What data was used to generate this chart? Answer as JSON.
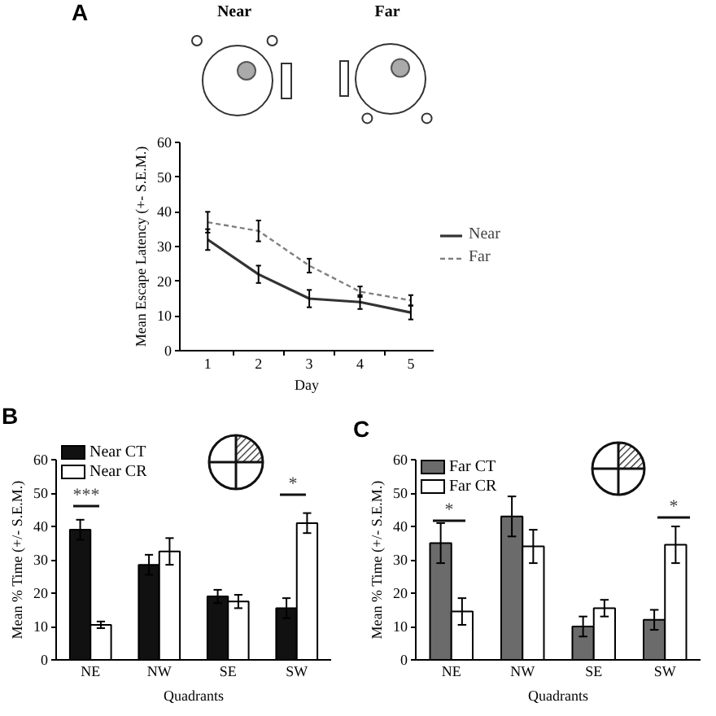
{
  "chart_data": [
    {
      "type": "line",
      "title": "A",
      "xlabel": "Day",
      "ylabel": "Mean Escape Latency (+- S.E.M.)",
      "categories": [
        "1",
        "2",
        "3",
        "4",
        "5"
      ],
      "ylim": [
        0,
        60
      ],
      "yticks": [
        0,
        10,
        20,
        30,
        40,
        50,
        60
      ],
      "legend": "right",
      "annotations": [
        "Near",
        "Far"
      ],
      "series": [
        {
          "name": "Near",
          "color": "#333333",
          "line_style": "solid",
          "values": [
            32,
            22,
            15,
            14,
            11
          ],
          "errors": [
            3,
            2.5,
            2.5,
            2,
            2
          ]
        },
        {
          "name": "Far",
          "color": "#808080",
          "line_style": "dashed",
          "values": [
            37,
            34.5,
            24.5,
            17,
            14.5
          ],
          "errors": [
            3,
            3,
            2,
            1.5,
            1.5
          ]
        }
      ]
    },
    {
      "type": "bar",
      "title": "B",
      "xlabel": "Quadrants",
      "ylabel": "Mean % Time (+/- S.E.M.)",
      "categories": [
        "NE",
        "NW",
        "SE",
        "SW"
      ],
      "ylim": [
        0,
        60
      ],
      "yticks": [
        0,
        10,
        20,
        30,
        40,
        50,
        60
      ],
      "legend": "top left",
      "annotations": [
        "***",
        "*"
      ],
      "series": [
        {
          "name": "Near CT",
          "color": "#111111",
          "values": [
            39,
            28.5,
            19,
            15.5
          ],
          "errors": [
            3,
            3,
            2,
            3
          ]
        },
        {
          "name": "Near CR",
          "color": "#ffffff",
          "values": [
            10.5,
            32.5,
            17.5,
            41
          ],
          "errors": [
            1,
            4,
            2,
            3
          ]
        }
      ]
    },
    {
      "type": "bar",
      "title": "C",
      "xlabel": "Quadrants",
      "ylabel": "Mean % Time (+/- S.E.M.)",
      "categories": [
        "NE",
        "NW",
        "SE",
        "SW"
      ],
      "ylim": [
        0,
        60
      ],
      "yticks": [
        0,
        10,
        20,
        30,
        40,
        50,
        60
      ],
      "legend": "top left",
      "annotations": [
        "*",
        "*"
      ],
      "series": [
        {
          "name": "Far CT",
          "color": "#6b6b6b",
          "values": [
            35,
            43,
            10,
            12
          ],
          "errors": [
            6,
            6,
            3,
            3
          ]
        },
        {
          "name": "Far CR",
          "color": "#ffffff",
          "values": [
            14.5,
            34,
            15.5,
            34.5
          ],
          "errors": [
            4,
            5,
            2.5,
            5.5
          ]
        }
      ]
    }
  ]
}
